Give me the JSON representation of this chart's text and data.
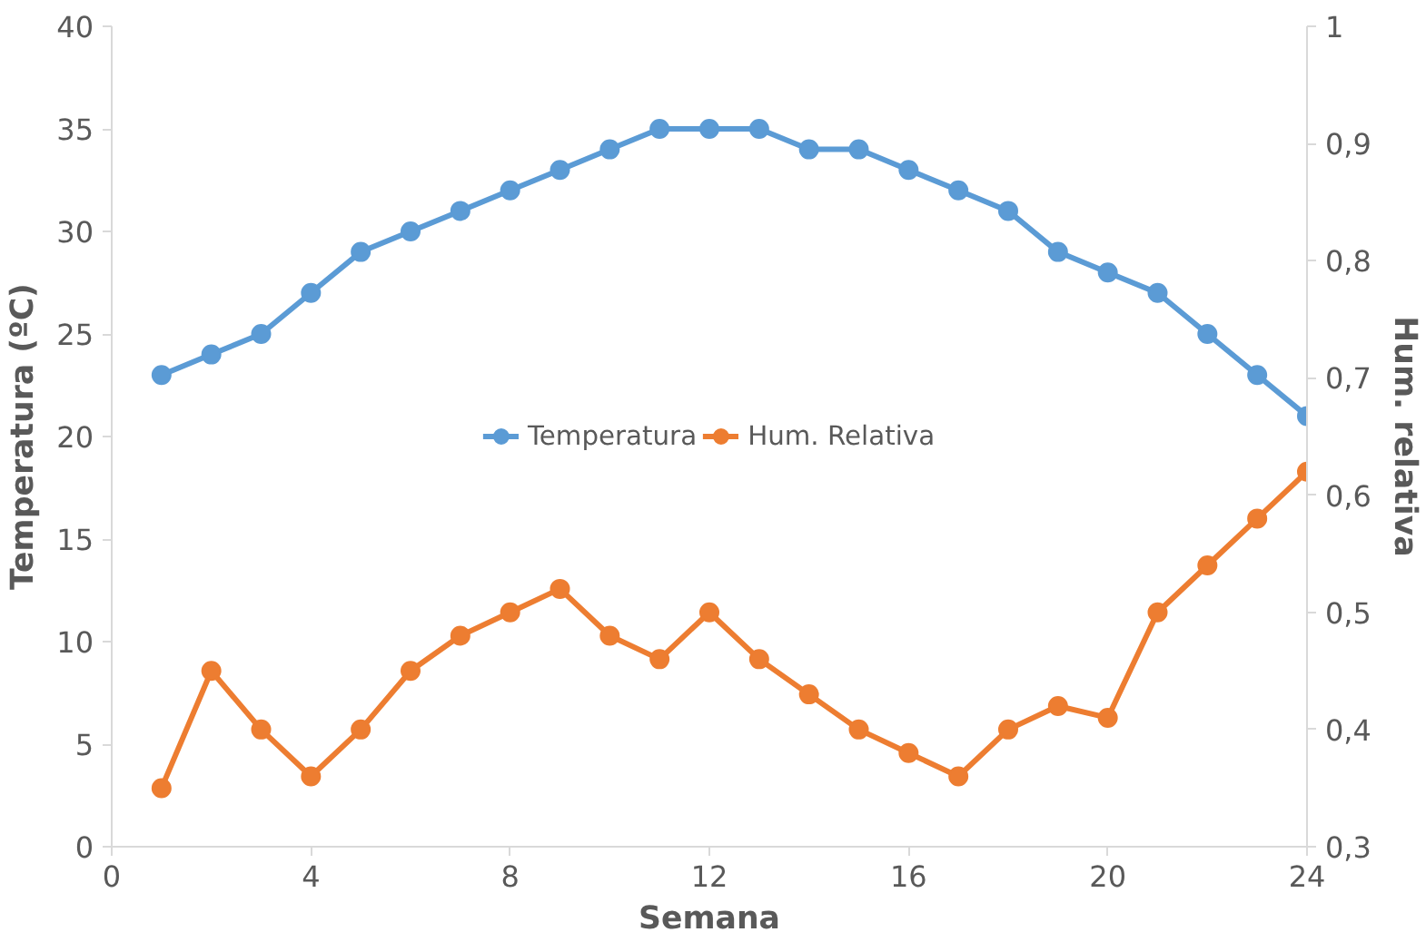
{
  "chart_data": {
    "type": "line",
    "xlabel": "Semana",
    "ylabel": "Temperatura (ºC)",
    "y2label": "Hum. relativa",
    "x": [
      1,
      2,
      3,
      4,
      5,
      6,
      7,
      8,
      9,
      10,
      11,
      12,
      13,
      14,
      15,
      16,
      17,
      18,
      19,
      20,
      21,
      22,
      23,
      24
    ],
    "xlim": [
      0,
      24
    ],
    "xticks": [
      0,
      4,
      8,
      12,
      16,
      20,
      24
    ],
    "ylim": [
      0,
      40
    ],
    "yticks": [
      0,
      5,
      10,
      15,
      20,
      25,
      30,
      35,
      40
    ],
    "y2lim": [
      0.3,
      1
    ],
    "y2ticks": [
      {
        "value": 0.3,
        "label": "0,3"
      },
      {
        "value": 0.4,
        "label": "0,4"
      },
      {
        "value": 0.5,
        "label": "0,5"
      },
      {
        "value": 0.6,
        "label": "0,6"
      },
      {
        "value": 0.7,
        "label": "0,7"
      },
      {
        "value": 0.8,
        "label": "0,8"
      },
      {
        "value": 0.9,
        "label": "0,9"
      },
      {
        "value": 1,
        "label": "1"
      }
    ],
    "series": [
      {
        "name": "Temperatura",
        "color": "#5b9bd5",
        "values": [
          23,
          24,
          25,
          27,
          29,
          30,
          31,
          32,
          33,
          34,
          35,
          35,
          35,
          34,
          34,
          33,
          32,
          31,
          29,
          28,
          27,
          25,
          23,
          21
        ]
      },
      {
        "name": "Hum. Relativa",
        "color": "#ed7d31",
        "axis": "y2",
        "values": [
          0.35,
          0.45,
          0.4,
          0.36,
          0.4,
          0.45,
          0.48,
          0.5,
          0.52,
          0.48,
          0.46,
          0.5,
          0.46,
          0.43,
          0.4,
          0.38,
          0.36,
          0.4,
          0.42,
          0.41,
          0.5,
          0.54,
          0.58,
          0.62
        ]
      }
    ],
    "marker": "circle",
    "line_style": "solid",
    "grid": false,
    "legend": "center"
  }
}
